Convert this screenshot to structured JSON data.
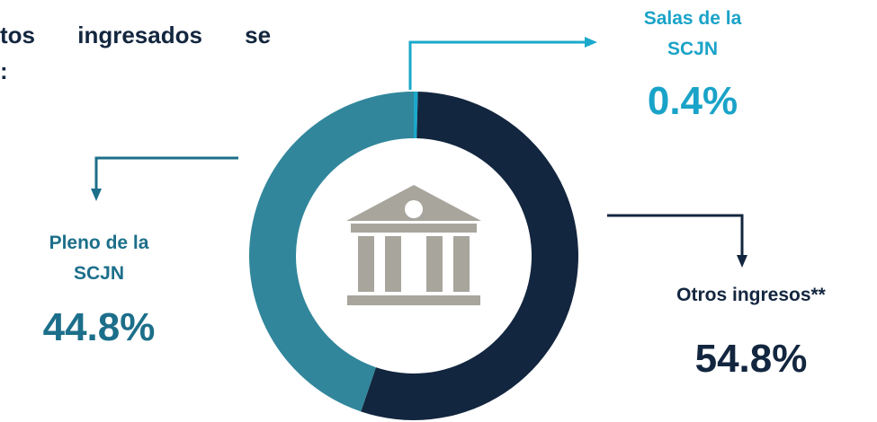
{
  "intro": [
    "tos ingresados se",
    ":"
  ],
  "chart_data": {
    "type": "pie",
    "donut": true,
    "categories": [
      "Salas de la SCJN",
      "Otros ingresos**",
      "Pleno de la SCJN"
    ],
    "values": [
      0.4,
      54.8,
      44.8
    ],
    "value_labels": [
      "0.4%",
      "54.8%",
      "44.8%"
    ],
    "colors": [
      "#1aa9cb",
      "#13263f",
      "#31869b"
    ],
    "label_colors": [
      "#1aa3c8",
      "#13263f",
      "#1c6f8a"
    ]
  }
}
